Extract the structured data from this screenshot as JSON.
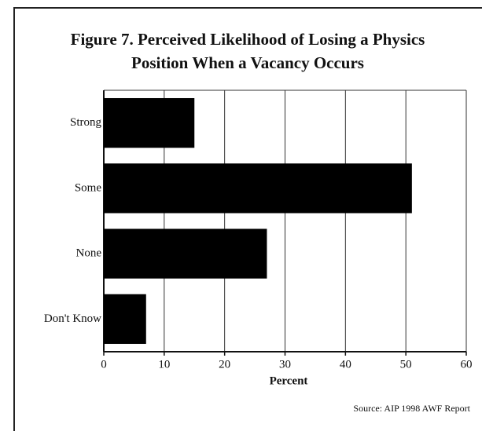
{
  "chart_data": {
    "type": "bar",
    "orientation": "horizontal",
    "title": [
      "Figure 7.  Perceived Likelihood of Losing a Physics",
      "Position When a Vacancy Occurs"
    ],
    "categories": [
      "Strong",
      "Some",
      "None",
      "Don't Know"
    ],
    "values": [
      15,
      51,
      27,
      7
    ],
    "color": "#000000",
    "xlabel": "Percent",
    "xlim": [
      0,
      60
    ],
    "xticks": [
      0,
      10,
      20,
      30,
      40,
      50,
      60
    ],
    "grid": true,
    "annotation": "Source:  AIP 1998 AWF Report"
  }
}
